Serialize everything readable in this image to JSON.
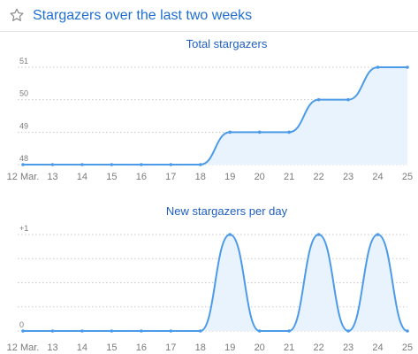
{
  "header": {
    "title": "Stargazers over the last two weeks",
    "icon": "star-icon"
  },
  "colors": {
    "line": "#4c9be8",
    "fill": "#e9f3fd",
    "grid": "#c8c8c8",
    "title": "#1f5fbf",
    "axis_text": "#7a7a7a"
  },
  "chart_data": [
    {
      "type": "area",
      "title": "Total stargazers",
      "x": [
        "12 Mar.",
        "13",
        "14",
        "15",
        "16",
        "17",
        "18",
        "19",
        "20",
        "21",
        "22",
        "23",
        "24",
        "25"
      ],
      "values": [
        48,
        48,
        48,
        48,
        48,
        48,
        48,
        49,
        49,
        49,
        50,
        50,
        51,
        51
      ],
      "y_ticks": [
        "48",
        "49",
        "50",
        "51"
      ],
      "ylim": [
        48,
        51
      ],
      "grid": true
    },
    {
      "type": "area",
      "title": "New stargazers per day",
      "x": [
        "12 Mar.",
        "13",
        "14",
        "15",
        "16",
        "17",
        "18",
        "19",
        "20",
        "21",
        "22",
        "23",
        "24",
        "25"
      ],
      "values": [
        0,
        0,
        0,
        0,
        0,
        0,
        0,
        1,
        0,
        0,
        1,
        0,
        1,
        0
      ],
      "y_ticks": [
        "0",
        "+1"
      ],
      "ylim": [
        0,
        1
      ],
      "grid": true
    }
  ]
}
